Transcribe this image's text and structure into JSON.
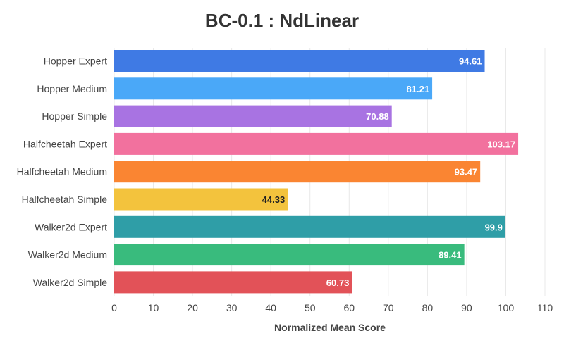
{
  "chart_data": {
    "type": "bar",
    "orientation": "horizontal",
    "title": "BC-0.1 : NdLinear",
    "xlabel": "Normalized Mean Score",
    "ylabel": "",
    "xlim": [
      0,
      110
    ],
    "xticks": [
      0,
      10,
      20,
      30,
      40,
      50,
      60,
      70,
      80,
      90,
      100,
      110
    ],
    "grid": true,
    "categories": [
      "Hopper Expert",
      "Hopper Medium",
      "Hopper Simple",
      "Halfcheetah Expert",
      "Halfcheetah Medium",
      "Halfcheetah Simple",
      "Walker2d Expert",
      "Walker2d Medium",
      "Walker2d Simple"
    ],
    "values": [
      94.61,
      81.21,
      70.88,
      103.17,
      93.47,
      44.33,
      99.9,
      89.41,
      60.73
    ],
    "value_labels": [
      "94.61",
      "81.21",
      "70.88",
      "103.17",
      "93.47",
      "44.33",
      "99.9",
      "89.41",
      "60.73"
    ],
    "colors": [
      "#3f7ae4",
      "#4aa8f8",
      "#a873e2",
      "#f2719e",
      "#fa8532",
      "#f3c33d",
      "#2f9ea7",
      "#39bb7d",
      "#e25258"
    ],
    "label_colors": [
      "#ffffff",
      "#ffffff",
      "#ffffff",
      "#ffffff",
      "#ffffff",
      "#222222",
      "#ffffff",
      "#ffffff",
      "#ffffff"
    ]
  }
}
